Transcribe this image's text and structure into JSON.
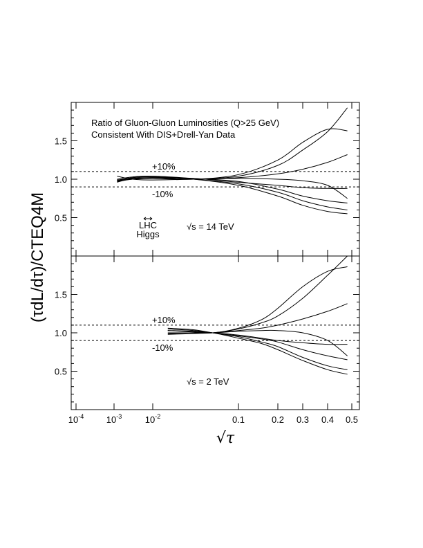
{
  "chart_data": {
    "type": "line",
    "y_label": "(τdL/dτ)/CTEQ4M",
    "x_label": "√τ",
    "x_ticks": [
      {
        "value": 0.0001,
        "base": "10",
        "exp": "-4"
      },
      {
        "value": 0.001,
        "base": "10",
        "exp": "-3"
      },
      {
        "value": 0.01,
        "base": "10",
        "exp": "-2"
      },
      {
        "value": 0.1,
        "label": "0.1"
      },
      {
        "value": 0.2,
        "label": "0.2"
      },
      {
        "value": 0.3,
        "label": "0.3"
      },
      {
        "value": 0.4,
        "label": "0.4"
      },
      {
        "value": 0.5,
        "label": "0.5"
      }
    ],
    "x_scale": "warped-log",
    "bands": {
      "plus_label": "+10%",
      "minus_label": "-10%",
      "upper": 1.1,
      "lower": 0.9
    },
    "panels": [
      {
        "id": "top",
        "title_lines": [
          "Ratio of Gluon-Gluon Luminosities (Q>25 GeV)",
          "Consistent With DIS+Drell-Yan Data"
        ],
        "energy_label": "√s = 14 TeV",
        "marker_label": [
          "LHC",
          "Higgs"
        ],
        "ylim": [
          0.0,
          2.0
        ],
        "yticks": [
          {
            "value": 0.5,
            "label": "0.5"
          },
          {
            "value": 1.0,
            "label": "1.0"
          },
          {
            "value": 1.5,
            "label": "1.5"
          }
        ],
        "series": [
          {
            "x": [
              0.0012,
              0.003,
              0.01,
              0.03,
              0.1,
              0.2,
              0.3,
              0.4,
              0.48
            ],
            "y": [
              0.97,
              1.0,
              1.02,
              1.0,
              1.04,
              1.18,
              1.38,
              1.62,
              1.93
            ]
          },
          {
            "x": [
              0.0012,
              0.003,
              0.01,
              0.03,
              0.1,
              0.2,
              0.3,
              0.4,
              0.48
            ],
            "y": [
              0.98,
              1.0,
              1.01,
              1.0,
              1.06,
              1.25,
              1.48,
              1.65,
              1.63
            ]
          },
          {
            "x": [
              0.0012,
              0.003,
              0.01,
              0.03,
              0.1,
              0.2,
              0.3,
              0.4,
              0.48
            ],
            "y": [
              0.99,
              1.01,
              1.02,
              1.0,
              1.02,
              1.07,
              1.13,
              1.22,
              1.32
            ]
          },
          {
            "x": [
              0.0012,
              0.003,
              0.01,
              0.03,
              0.1,
              0.2,
              0.3,
              0.4,
              0.48
            ],
            "y": [
              1.04,
              1.0,
              0.99,
              1.0,
              1.01,
              1.0,
              0.98,
              0.92,
              0.75
            ]
          },
          {
            "x": [
              0.0012,
              0.003,
              0.01,
              0.03,
              0.1,
              0.2,
              0.3,
              0.4,
              0.48
            ],
            "y": [
              0.96,
              1.01,
              1.02,
              1.01,
              0.96,
              0.92,
              0.89,
              0.88,
              0.88
            ]
          },
          {
            "x": [
              0.0012,
              0.003,
              0.01,
              0.03,
              0.1,
              0.2,
              0.3,
              0.4,
              0.48
            ],
            "y": [
              0.97,
              1.02,
              1.04,
              1.01,
              0.97,
              0.87,
              0.78,
              0.72,
              0.69
            ]
          },
          {
            "x": [
              0.0012,
              0.003,
              0.01,
              0.03,
              0.1,
              0.2,
              0.3,
              0.4,
              0.48
            ],
            "y": [
              1.0,
              1.03,
              1.04,
              1.0,
              0.94,
              0.83,
              0.72,
              0.64,
              0.6
            ]
          },
          {
            "x": [
              0.0012,
              0.003,
              0.01,
              0.03,
              0.1,
              0.2,
              0.3,
              0.4,
              0.48
            ],
            "y": [
              0.98,
              1.02,
              1.03,
              1.0,
              0.92,
              0.78,
              0.66,
              0.58,
              0.55
            ]
          }
        ]
      },
      {
        "id": "bottom",
        "energy_label": "√s = 2 TeV",
        "ylim": [
          0.0,
          2.0
        ],
        "yticks": [
          {
            "value": 0.5,
            "label": "0.5"
          },
          {
            "value": 1.0,
            "label": "1.0"
          },
          {
            "value": 1.5,
            "label": "1.5"
          }
        ],
        "series": [
          {
            "x": [
              0.015,
              0.03,
              0.05,
              0.1,
              0.15,
              0.2,
              0.3,
              0.4,
              0.48
            ],
            "y": [
              1.0,
              1.0,
              1.0,
              1.05,
              1.13,
              1.22,
              1.45,
              1.75,
              2.0
            ]
          },
          {
            "x": [
              0.015,
              0.03,
              0.05,
              0.1,
              0.15,
              0.2,
              0.3,
              0.4,
              0.48
            ],
            "y": [
              1.03,
              1.02,
              1.0,
              1.06,
              1.17,
              1.32,
              1.6,
              1.8,
              1.86
            ]
          },
          {
            "x": [
              0.015,
              0.03,
              0.05,
              0.1,
              0.15,
              0.2,
              0.3,
              0.4,
              0.48
            ],
            "y": [
              0.98,
              0.99,
              1.0,
              1.03,
              1.06,
              1.1,
              1.18,
              1.28,
              1.38
            ]
          },
          {
            "x": [
              0.015,
              0.03,
              0.05,
              0.1,
              0.15,
              0.2,
              0.3,
              0.4,
              0.48
            ],
            "y": [
              1.03,
              1.01,
              1.0,
              1.02,
              1.03,
              1.03,
              1.0,
              0.9,
              0.7
            ]
          },
          {
            "x": [
              0.015,
              0.03,
              0.05,
              0.1,
              0.15,
              0.2,
              0.3,
              0.4,
              0.48
            ],
            "y": [
              0.99,
              1.0,
              1.0,
              0.97,
              0.93,
              0.9,
              0.87,
              0.85,
              0.85
            ]
          },
          {
            "x": [
              0.015,
              0.03,
              0.05,
              0.1,
              0.15,
              0.2,
              0.3,
              0.4,
              0.48
            ],
            "y": [
              1.05,
              1.03,
              1.0,
              0.96,
              0.92,
              0.88,
              0.78,
              0.7,
              0.65
            ]
          },
          {
            "x": [
              0.015,
              0.03,
              0.05,
              0.1,
              0.15,
              0.2,
              0.3,
              0.4,
              0.48
            ],
            "y": [
              1.06,
              1.04,
              1.0,
              0.95,
              0.88,
              0.82,
              0.68,
              0.57,
              0.52
            ]
          },
          {
            "x": [
              0.015,
              0.03,
              0.05,
              0.1,
              0.15,
              0.2,
              0.3,
              0.4,
              0.48
            ],
            "y": [
              1.03,
              1.02,
              1.0,
              0.93,
              0.86,
              0.78,
              0.64,
              0.52,
              0.46
            ]
          }
        ]
      }
    ]
  }
}
